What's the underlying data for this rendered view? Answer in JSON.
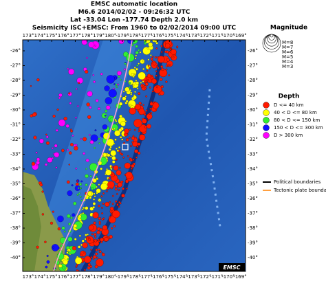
{
  "header": {
    "lines": [
      "EMSC automatic location",
      "M6.6  2014/02/02 - 09:26:32 UTC",
      "Lat -33.04    Lon -177.74    Depth    2.0 km",
      "Seismicity ISC+EMSC: From 1960 to 02/02/2014 09:00 UTC"
    ]
  },
  "map": {
    "lon_labels": [
      "173°",
      "174°",
      "175°",
      "176°",
      "177°",
      "178°",
      "179°",
      "180°",
      "-179°",
      "-178°",
      "-177°",
      "-176°",
      "-175°",
      "-174°",
      "-173°",
      "-172°",
      "-171°",
      "-170°",
      "-169°"
    ],
    "lat_labels": [
      "-26°",
      "-27°",
      "-28°",
      "-29°",
      "-30°",
      "-31°",
      "-32°",
      "-33°",
      "-34°",
      "-35°",
      "-36°",
      "-37°",
      "-38°",
      "-39°",
      "-40°"
    ],
    "logo": "EMSC"
  },
  "legend": {
    "magnitude": {
      "title": "Magnitude",
      "items": [
        "M=8",
        "M=7",
        "M=6",
        "M=5",
        "M=4",
        "M=3"
      ]
    },
    "depth": {
      "title": "Depth",
      "items": [
        {
          "label": "D <= 40 km",
          "color": "#ff1a00"
        },
        {
          "label": "40 < D <= 80 km",
          "color": "#ffff00"
        },
        {
          "label": "80 < D <= 150 km",
          "color": "#33ee33"
        },
        {
          "label": "150 < D <= 300 km",
          "color": "#1010ff"
        },
        {
          "label": "D > 300 km",
          "color": "#ff00ff"
        }
      ]
    },
    "boundaries": [
      {
        "label": "Political boundaries",
        "color": "#000000"
      },
      {
        "label": "Tectonic plate boundaries",
        "color": "#ffa040"
      }
    ]
  }
}
